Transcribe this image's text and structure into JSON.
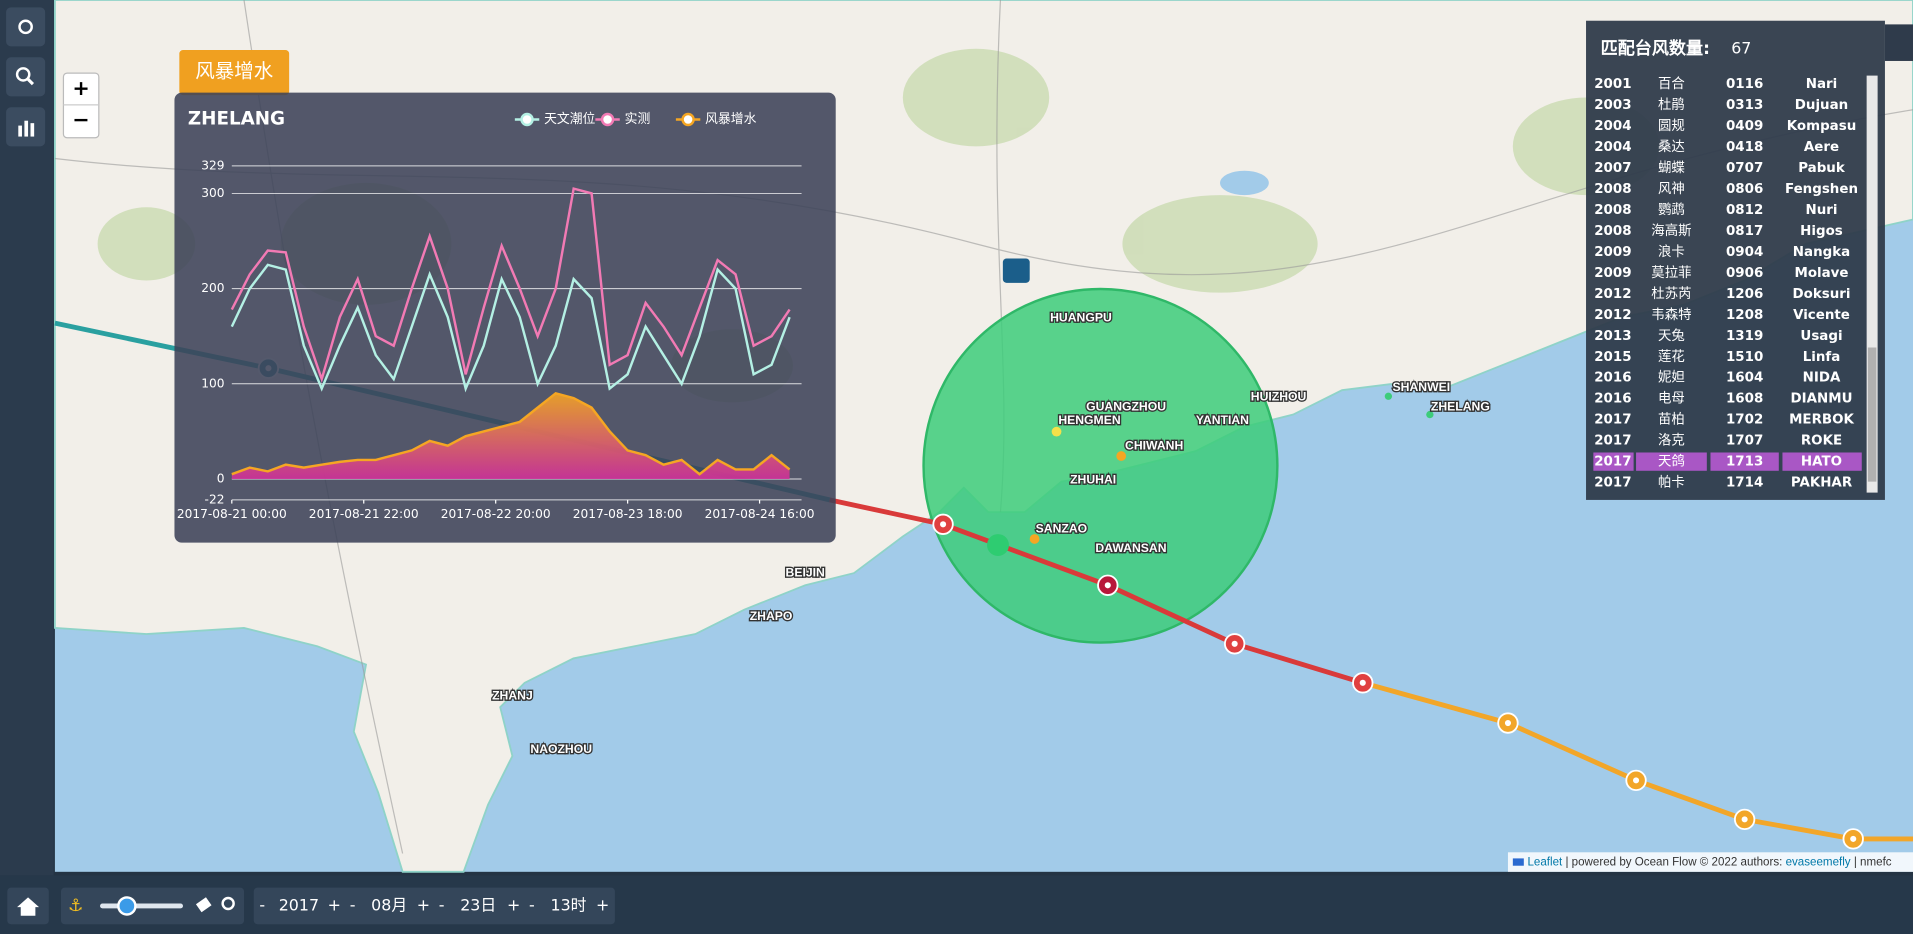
{
  "panel": {
    "tab": "风暴增水",
    "station": "ZHELANG"
  },
  "zoom": {
    "in": "+",
    "out": "−"
  },
  "chart_data": {
    "type": "line",
    "x": [
      0,
      3,
      6,
      9,
      12,
      15,
      18,
      21,
      24,
      27,
      30,
      33,
      36,
      39,
      42,
      45,
      48,
      51,
      54,
      57,
      60,
      63,
      66,
      69,
      72,
      75,
      78,
      81,
      84,
      87,
      90,
      93
    ],
    "series": [
      {
        "name": "天文潮位",
        "color": "#b4f0e4",
        "values": [
          160,
          200,
          225,
          220,
          140,
          95,
          140,
          180,
          130,
          105,
          160,
          215,
          170,
          95,
          140,
          210,
          170,
          100,
          140,
          210,
          190,
          95,
          110,
          160,
          130,
          100,
          150,
          220,
          200,
          110,
          120,
          170
        ]
      },
      {
        "name": "实测",
        "color": "#f27ab4",
        "values": [
          178,
          215,
          240,
          238,
          160,
          105,
          170,
          210,
          150,
          140,
          200,
          255,
          200,
          110,
          180,
          245,
          200,
          150,
          200,
          305,
          300,
          120,
          130,
          185,
          160,
          130,
          180,
          230,
          215,
          140,
          150,
          178
        ]
      },
      {
        "name": "风暴增水",
        "color": "#f5a623",
        "values": [
          5,
          12,
          8,
          15,
          12,
          15,
          18,
          20,
          20,
          25,
          30,
          40,
          35,
          45,
          50,
          55,
          60,
          75,
          90,
          85,
          75,
          50,
          30,
          25,
          15,
          20,
          5,
          20,
          10,
          10,
          25,
          10
        ]
      }
    ],
    "xlim": [
      0,
      95
    ],
    "xticks": [
      {
        "value": 0,
        "label": "2017-08-21 00:00"
      },
      {
        "value": 22,
        "label": "2017-08-21 22:00"
      },
      {
        "value": 44,
        "label": "2017-08-22 20:00"
      },
      {
        "value": 66,
        "label": "2017-08-23 18:00"
      },
      {
        "value": 88,
        "label": "2017-08-24 16:00"
      }
    ],
    "ylim": [
      -22,
      329
    ],
    "yticks": [
      -22,
      0,
      100,
      200,
      300,
      329
    ],
    "grid": true
  },
  "stations": [
    "HUANGPU",
    "GUANGZHOU",
    "HENGMEN",
    "YANTIAN",
    "HUIZHOU",
    "SHANWEI",
    "ZHELANG",
    "CHIWANH",
    "ZHUHAI",
    "SANZAO",
    "DAWANSAN",
    "BEIJIN",
    "ZHAPO",
    "ZHANJ",
    "NAOZHOU"
  ],
  "typhoon_table": {
    "title": "匹配台风数量:",
    "count": 67,
    "selected": 18,
    "rows": [
      [
        "2001",
        "百合",
        "0116",
        "Nari"
      ],
      [
        "2003",
        "杜鹃",
        "0313",
        "Dujuan"
      ],
      [
        "2004",
        "圆规",
        "0409",
        "Kompasu"
      ],
      [
        "2004",
        "桑达",
        "0418",
        "Aere"
      ],
      [
        "2007",
        "蝴蝶",
        "0707",
        "Pabuk"
      ],
      [
        "2008",
        "风神",
        "0806",
        "Fengshen"
      ],
      [
        "2008",
        "鹦鹉",
        "0812",
        "Nuri"
      ],
      [
        "2008",
        "海高斯",
        "0817",
        "Higos"
      ],
      [
        "2009",
        "浪卡",
        "0904",
        "Nangka"
      ],
      [
        "2009",
        "莫拉菲",
        "0906",
        "Molave"
      ],
      [
        "2012",
        "杜苏芮",
        "1206",
        "Doksuri"
      ],
      [
        "2012",
        "韦森特",
        "1208",
        "Vicente"
      ],
      [
        "2013",
        "天兔",
        "1319",
        "Usagi"
      ],
      [
        "2015",
        "莲花",
        "1510",
        "Linfa"
      ],
      [
        "2016",
        "妮妲",
        "1604",
        "NIDA"
      ],
      [
        "2016",
        "电母",
        "1608",
        "DIANMU"
      ],
      [
        "2017",
        "苗柏",
        "1702",
        "MERBOK"
      ],
      [
        "2017",
        "洛克",
        "1707",
        "ROKE"
      ],
      [
        "2017",
        "天鸽",
        "1713",
        "HATO"
      ],
      [
        "2017",
        "帕卡",
        "1714",
        "PAKHAR"
      ]
    ]
  },
  "timebar": {
    "minus": "-",
    "plus": "+",
    "year": "2017",
    "month": "08月",
    "day": "23日",
    "hour": "13时"
  },
  "attribution": {
    "leaflet": "Leaflet",
    "text": " | powered by Ocean Flow © 2022 authors: ",
    "author": "evaseemefly",
    "tail": " | nmefc"
  }
}
